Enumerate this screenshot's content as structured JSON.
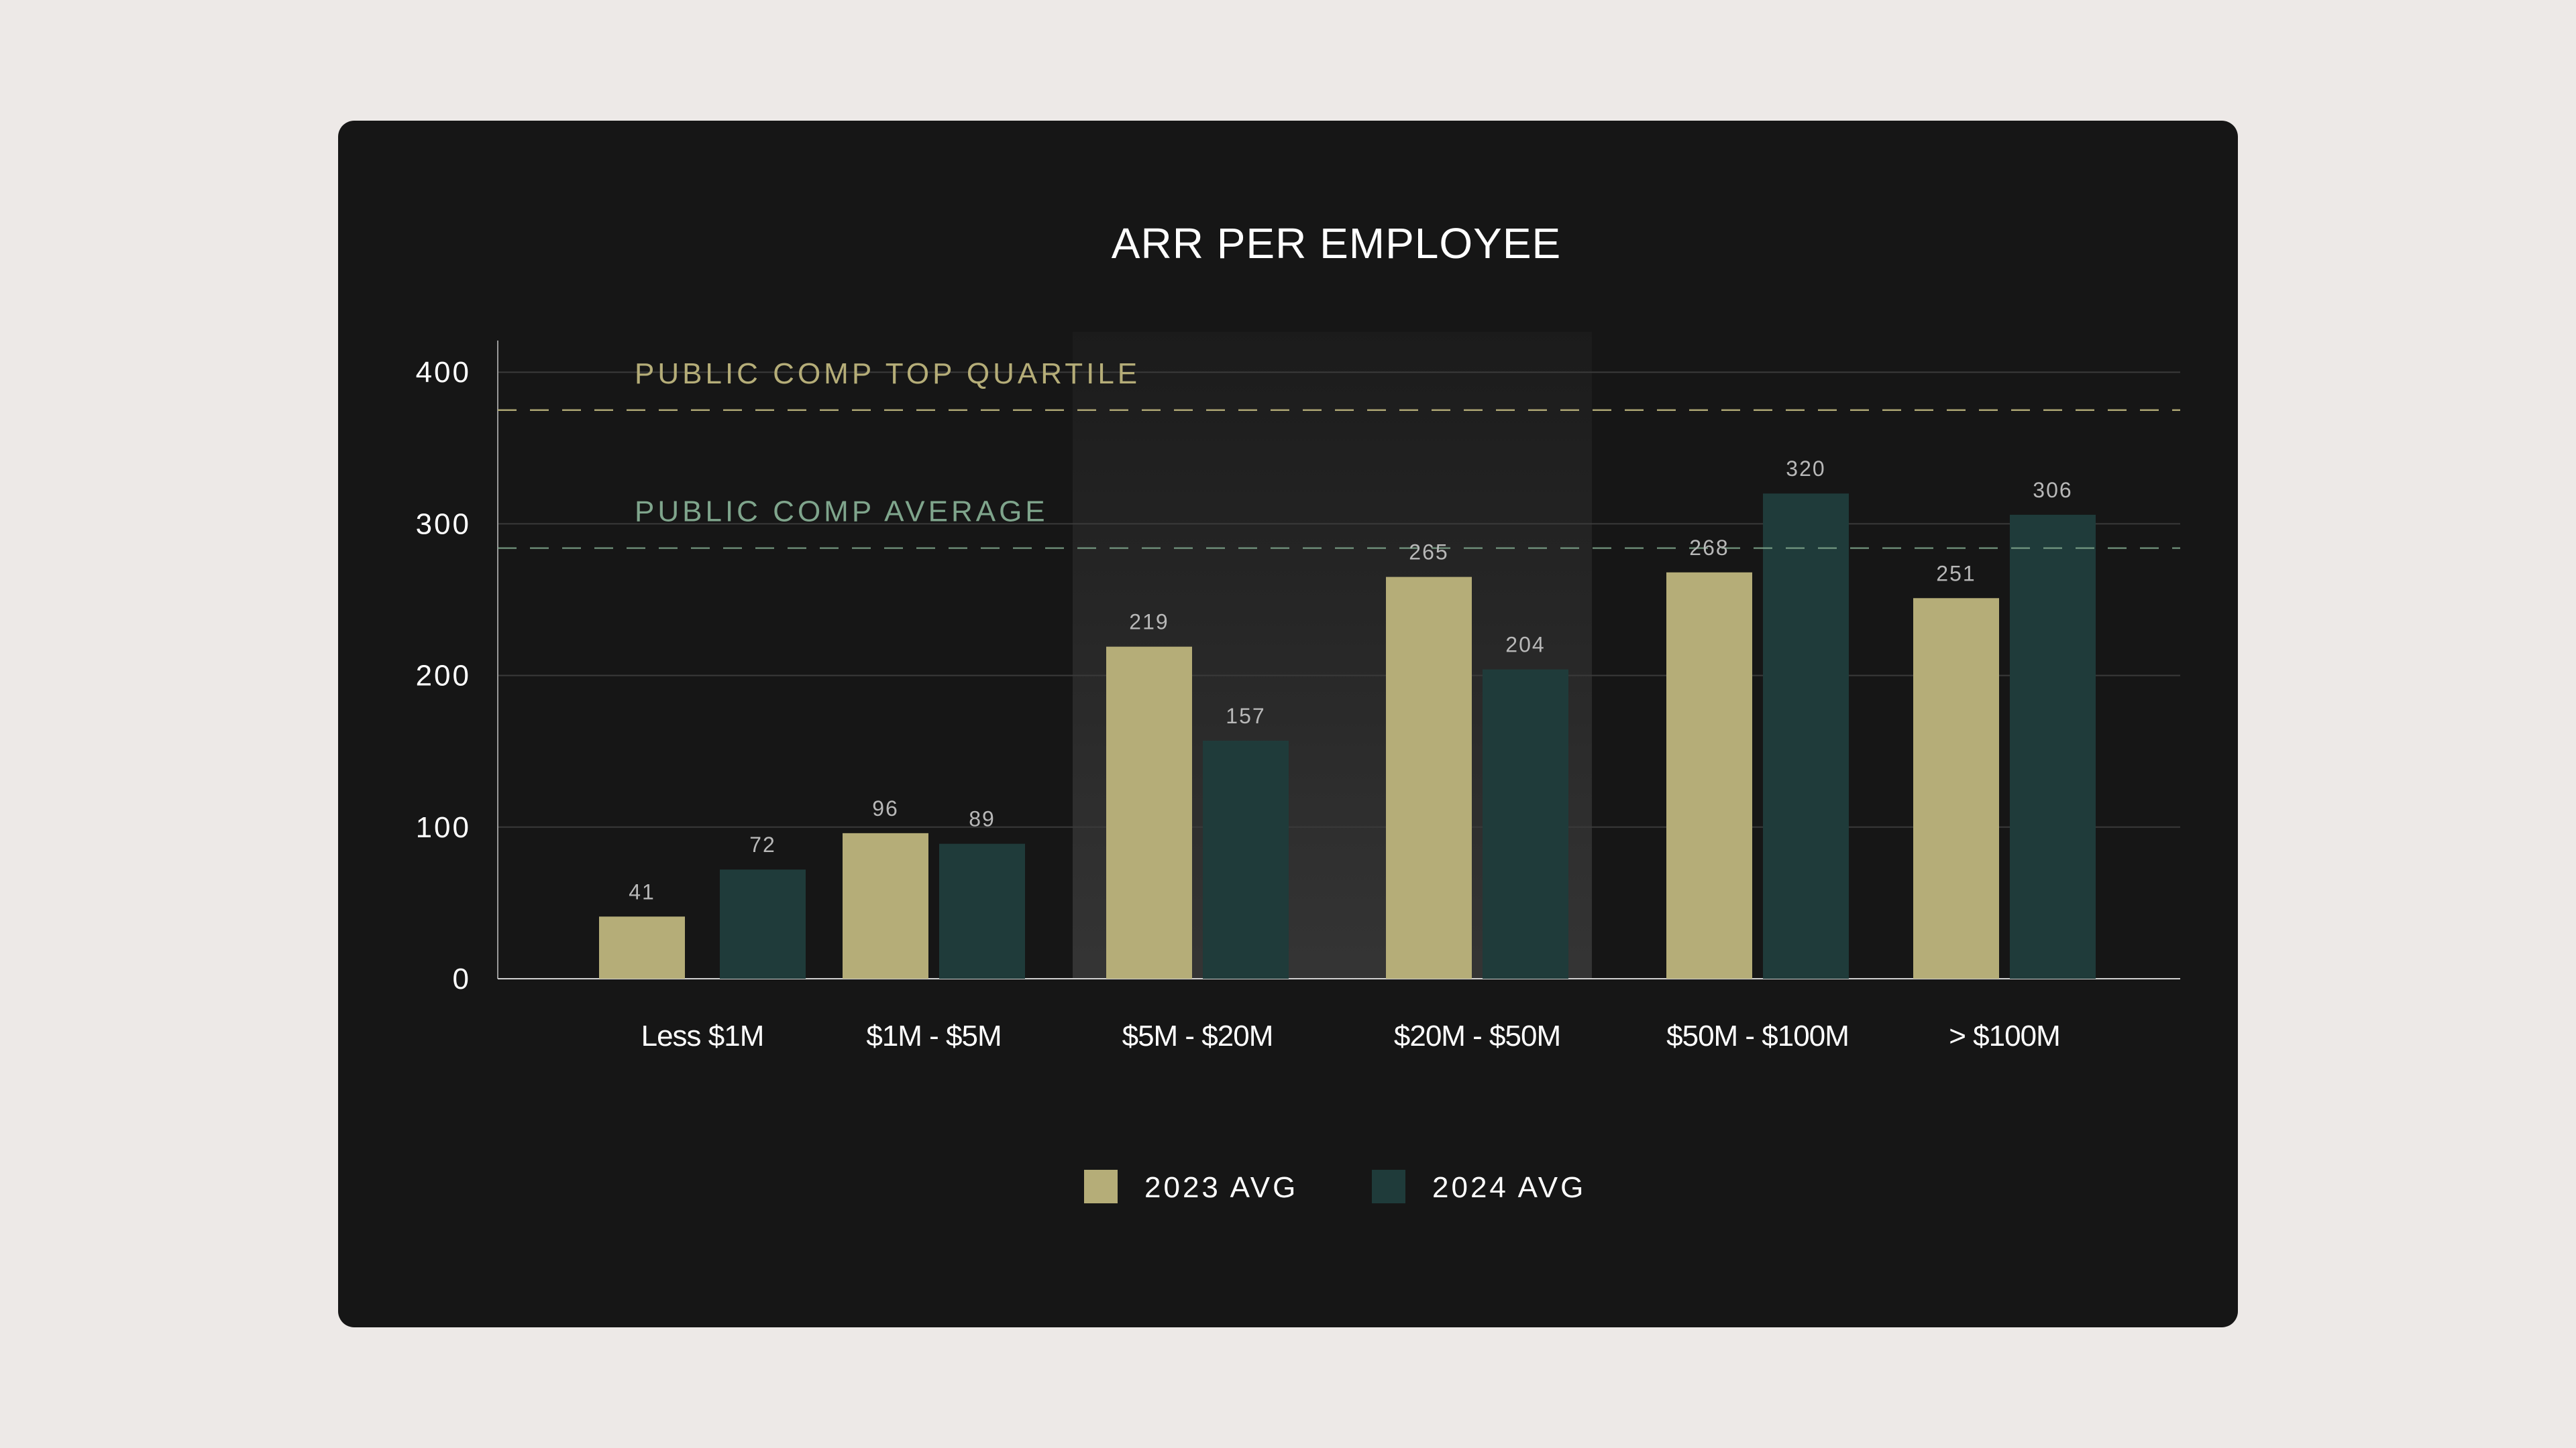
{
  "colors": {
    "page_background": "#ede9e7",
    "card_background": "#161616",
    "series_2023": "#b5ad78",
    "series_2024": "#1f3b3a",
    "top_quartile_line": "#b5ad78",
    "average_line": "#7fa58c",
    "gridline": "#3a3a3a",
    "highlight_band": "#2c2c2c"
  },
  "chart_data": {
    "type": "bar",
    "title": "ARR PER EMPLOYEE",
    "xlabel": "",
    "ylabel": "",
    "ylim": [
      0,
      420
    ],
    "yticks": [
      0,
      100,
      200,
      300,
      400
    ],
    "ytick_labels": [
      "0",
      "100",
      "200",
      "300",
      "400"
    ],
    "grid": true,
    "legend_position": "bottom-center",
    "categories": [
      "Less $1M",
      "$1M - $5M",
      "$5M - $20M",
      "$20M - $50M",
      "$50M - $100M",
      "> $100M"
    ],
    "highlighted_categories": [
      "$5M - $20M"
    ],
    "series": [
      {
        "name": "2023 AVG",
        "values": [
          41,
          96,
          219,
          265,
          268,
          251
        ]
      },
      {
        "name": "2024 AVG",
        "values": [
          72,
          89,
          157,
          204,
          320,
          306
        ]
      }
    ],
    "reference_lines": [
      {
        "label": "PUBLIC COMP TOP QUARTILE",
        "value": 375
      },
      {
        "label": "PUBLIC COMP AVERAGE",
        "value": 284
      }
    ]
  }
}
